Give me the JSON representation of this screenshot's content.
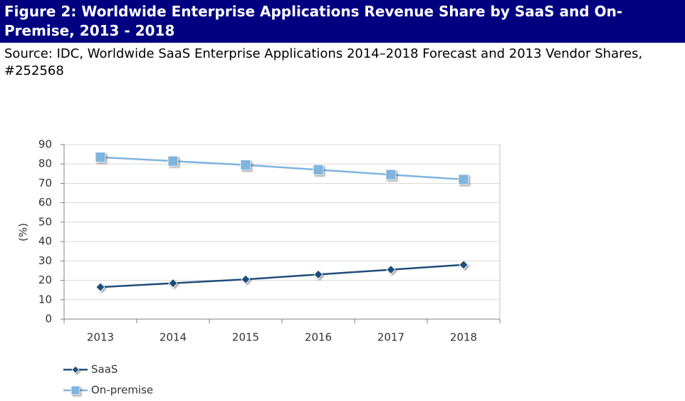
{
  "figure": {
    "title": "Figure 2: Worldwide Enterprise Applications Revenue Share by SaaS and On-Premise, 2013 - 2018",
    "source": "Source: IDC, Worldwide SaaS Enterprise Applications 2014–2018 Forecast and 2013 Vendor Shares, #252568"
  },
  "chart_data": {
    "type": "line",
    "title": "",
    "xlabel": "",
    "ylabel": "(%)",
    "categories": [
      "2013",
      "2014",
      "2015",
      "2016",
      "2017",
      "2018"
    ],
    "ylim": [
      0,
      90
    ],
    "yticks": [
      0,
      10,
      20,
      30,
      40,
      50,
      60,
      70,
      80,
      90
    ],
    "grid": true,
    "legend_position": "bottom-left",
    "series": [
      {
        "name": "SaaS",
        "values": [
          16.5,
          18.5,
          20.5,
          23,
          25.5,
          28
        ],
        "color": "#1f4e79",
        "marker": "diamond"
      },
      {
        "name": "On-premise",
        "values": [
          83.5,
          81.5,
          79.5,
          77,
          74.5,
          72
        ],
        "color": "#7fb4de",
        "marker": "square"
      }
    ]
  }
}
